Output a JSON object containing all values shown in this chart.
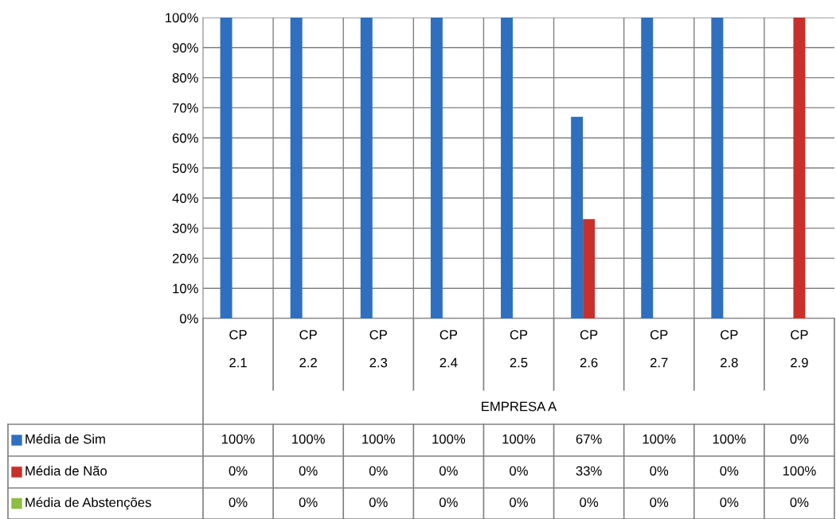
{
  "chart_data": {
    "type": "bar",
    "categories": [
      "CP 2.1",
      "CP 2.2",
      "CP 2.3",
      "CP 2.4",
      "CP 2.5",
      "CP 2.6",
      "CP 2.7",
      "CP 2.8",
      "CP 2.9"
    ],
    "annotations": [
      "EMPRESA A"
    ],
    "series": [
      {
        "name": "Média de Sim",
        "color": "#2f6fbf",
        "values": [
          100,
          100,
          100,
          100,
          100,
          67,
          100,
          100,
          0
        ],
        "value_labels": [
          "100%",
          "100%",
          "100%",
          "100%",
          "100%",
          "67%",
          "100%",
          "100%",
          "0%"
        ]
      },
      {
        "name": "Média de Não",
        "color": "#c8302c",
        "values": [
          0,
          0,
          0,
          0,
          0,
          33,
          0,
          0,
          100
        ],
        "value_labels": [
          "0%",
          "0%",
          "0%",
          "0%",
          "0%",
          "33%",
          "0%",
          "0%",
          "100%"
        ]
      },
      {
        "name": "Média de Abstenções",
        "color": "#8cbf3f",
        "values": [
          0,
          0,
          0,
          0,
          0,
          0,
          0,
          0,
          0
        ],
        "value_labels": [
          "0%",
          "0%",
          "0%",
          "0%",
          "0%",
          "0%",
          "0%",
          "0%",
          "0%"
        ]
      }
    ],
    "ylim": [
      0,
      100
    ],
    "yticks": [
      {
        "value": 0,
        "label": "0%"
      },
      {
        "value": 10,
        "label": "10%"
      },
      {
        "value": 20,
        "label": "20%"
      },
      {
        "value": 30,
        "label": "30%"
      },
      {
        "value": 40,
        "label": "40%"
      },
      {
        "value": 50,
        "label": "50%"
      },
      {
        "value": 60,
        "label": "60%"
      },
      {
        "value": 70,
        "label": "70%"
      },
      {
        "value": 80,
        "label": "80%"
      },
      {
        "value": 90,
        "label": "90%"
      },
      {
        "value": 100,
        "label": "100%"
      }
    ],
    "grid": "y",
    "legend": "bottom"
  }
}
